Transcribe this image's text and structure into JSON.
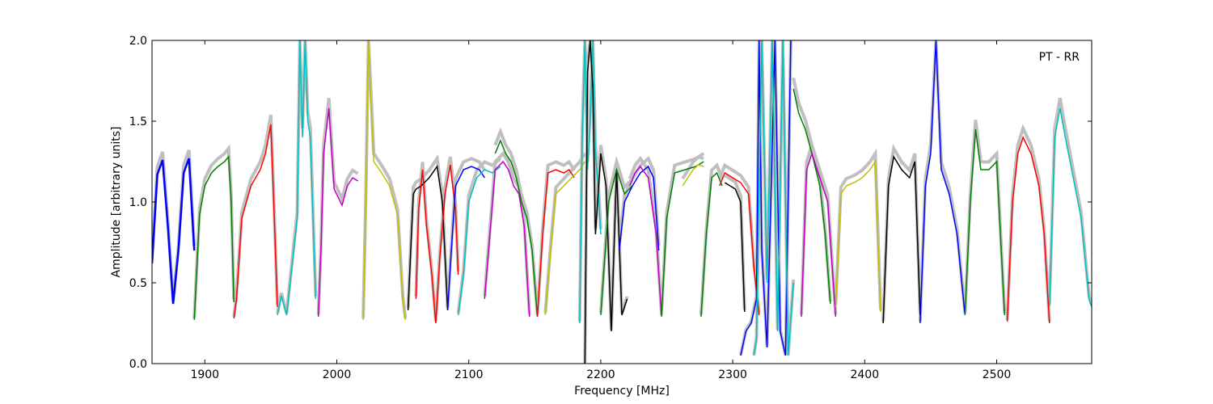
{
  "chart_data": {
    "type": "line",
    "title": "",
    "xlabel": "Frequency [MHz]",
    "ylabel": "Amplitude [arbitrary units]",
    "xlim": [
      1860,
      2572
    ],
    "ylim": [
      0,
      2.0
    ],
    "xticks": [
      1900,
      2000,
      2100,
      2200,
      2300,
      2400,
      2500
    ],
    "yticks": [
      0.0,
      0.5,
      1.0,
      1.5,
      2.0
    ],
    "annotation": "PT - RR",
    "grid": false,
    "reference_color": "#bfbfbf",
    "series": [
      {
        "color": "#0000ff",
        "x": [
          1860,
          1864,
          1868,
          1872,
          1876,
          1880,
          1884,
          1888,
          1892
        ],
        "y": [
          0.62,
          1.17,
          1.26,
          0.85,
          0.37,
          0.7,
          1.18,
          1.27,
          0.7
        ]
      },
      {
        "color": "#007f00",
        "x": [
          1892,
          1896,
          1900,
          1905,
          1910,
          1915,
          1918,
          1920,
          1922
        ],
        "y": [
          0.27,
          0.92,
          1.1,
          1.18,
          1.22,
          1.25,
          1.28,
          1.0,
          0.38
        ]
      },
      {
        "color": "#ff0000",
        "x": [
          1922,
          1924,
          1928,
          1935,
          1942,
          1946,
          1950,
          1952,
          1955
        ],
        "y": [
          0.28,
          0.4,
          0.9,
          1.1,
          1.2,
          1.3,
          1.48,
          1.05,
          0.35
        ]
      },
      {
        "color": "#00bfbf",
        "x": [
          1955,
          1958,
          1962,
          1966,
          1970,
          1972,
          1974,
          1976,
          1978,
          1980,
          1984
        ],
        "y": [
          0.3,
          0.42,
          0.3,
          0.6,
          0.9,
          2.0,
          1.4,
          2.0,
          1.5,
          1.4,
          0.4
        ]
      },
      {
        "color": "#bf00bf",
        "x": [
          1986,
          1988,
          1990,
          1994,
          1998,
          2004,
          2008,
          2012,
          2016
        ],
        "y": [
          0.29,
          0.7,
          1.3,
          1.58,
          1.08,
          0.98,
          1.1,
          1.15,
          1.13
        ]
      },
      {
        "color": "#bfbf00",
        "x": [
          2020,
          2022,
          2024,
          2026,
          2028,
          2034,
          2040,
          2046,
          2050,
          2052
        ],
        "y": [
          0.27,
          1.0,
          2.0,
          1.6,
          1.25,
          1.18,
          1.1,
          0.92,
          0.4,
          0.27
        ]
      },
      {
        "color": "#000000",
        "x": [
          2054,
          2056,
          2058,
          2060,
          2064,
          2070,
          2076,
          2080,
          2084
        ],
        "y": [
          0.33,
          0.7,
          1.05,
          1.08,
          1.1,
          1.15,
          1.22,
          1.0,
          0.33
        ]
      },
      {
        "color": "#ff0000",
        "x": [
          2060,
          2062,
          2065,
          2068,
          2072,
          2075,
          2078,
          2082,
          2086,
          2090,
          2092
        ],
        "y": [
          0.4,
          0.95,
          1.2,
          0.85,
          0.55,
          0.25,
          0.65,
          1.05,
          1.23,
          0.95,
          0.55
        ]
      },
      {
        "color": "#0000ff",
        "x": [
          2084,
          2086,
          2090,
          2096,
          2102,
          2108,
          2112
        ],
        "y": [
          0.33,
          0.6,
          1.1,
          1.2,
          1.22,
          1.2,
          1.15
        ]
      },
      {
        "color": "#00bfbf",
        "x": [
          2092,
          2096,
          2100,
          2106,
          2112,
          2118,
          2124
        ],
        "y": [
          0.3,
          0.55,
          1.0,
          1.15,
          1.2,
          1.18,
          1.22
        ]
      },
      {
        "color": "#bf00bf",
        "x": [
          2112,
          2116,
          2120,
          2126,
          2130,
          2134,
          2138,
          2142,
          2146
        ],
        "y": [
          0.4,
          0.8,
          1.2,
          1.25,
          1.2,
          1.1,
          1.05,
          0.85,
          0.29
        ]
      },
      {
        "color": "#007f00",
        "x": [
          2120,
          2124,
          2128,
          2132,
          2136,
          2140,
          2144,
          2148,
          2152
        ],
        "y": [
          1.3,
          1.38,
          1.3,
          1.25,
          1.15,
          1.0,
          0.9,
          0.7,
          0.29
        ]
      },
      {
        "color": "#ff0000",
        "x": [
          2152,
          2156,
          2160,
          2166,
          2172,
          2176,
          2180
        ],
        "y": [
          0.29,
          0.8,
          1.18,
          1.2,
          1.18,
          1.2,
          1.15
        ]
      },
      {
        "color": "#bfbf00",
        "x": [
          2158,
          2162,
          2166,
          2172,
          2178,
          2184,
          2188
        ],
        "y": [
          0.3,
          0.7,
          1.05,
          1.1,
          1.15,
          1.2,
          1.25
        ]
      },
      {
        "color": "#00bfbf",
        "x": [
          2184,
          2186,
          2188,
          2190,
          2192,
          2194,
          2196,
          2198,
          2200
        ],
        "y": [
          0.25,
          1.4,
          2.0,
          1.2,
          1.5,
          2.0,
          1.3,
          1.1,
          0.8
        ]
      },
      {
        "color": "#000000",
        "x": [
          2188,
          2190,
          2192,
          2194,
          2196,
          2200,
          2204,
          2208,
          2212,
          2216,
          2220
        ],
        "y": [
          0.0,
          1.8,
          2.0,
          1.7,
          0.8,
          1.3,
          1.1,
          0.2,
          1.2,
          0.3,
          0.4
        ]
      },
      {
        "color": "#007f00",
        "x": [
          2200,
          2206,
          2212,
          2218,
          2224
        ],
        "y": [
          0.3,
          1.0,
          1.2,
          1.05,
          1.1
        ]
      },
      {
        "color": "#0000ff",
        "x": [
          2214,
          2218,
          2224,
          2230,
          2236,
          2240,
          2244
        ],
        "y": [
          0.7,
          1.0,
          1.1,
          1.18,
          1.22,
          1.15,
          0.7
        ]
      },
      {
        "color": "#bf00bf",
        "x": [
          2222,
          2226,
          2230,
          2236,
          2242,
          2246
        ],
        "y": [
          1.1,
          1.18,
          1.22,
          1.15,
          0.8,
          0.3
        ]
      },
      {
        "color": "#007f00",
        "x": [
          2246,
          2250,
          2256,
          2264,
          2272,
          2278
        ],
        "y": [
          0.29,
          0.9,
          1.18,
          1.2,
          1.22,
          1.25
        ]
      },
      {
        "color": "#bfbf00",
        "x": [
          2262,
          2266,
          2270,
          2274,
          2278
        ],
        "y": [
          1.1,
          1.15,
          1.2,
          1.23,
          1.22
        ]
      },
      {
        "color": "#007f00",
        "x": [
          2276,
          2280,
          2284,
          2288,
          2292
        ],
        "y": [
          0.29,
          0.8,
          1.15,
          1.18,
          1.1
        ]
      },
      {
        "color": "#ff0000",
        "x": [
          2290,
          2294,
          2300,
          2306,
          2312,
          2316,
          2320
        ],
        "y": [
          1.1,
          1.18,
          1.15,
          1.12,
          1.05,
          0.6,
          0.3
        ]
      },
      {
        "color": "#000000",
        "x": [
          2294,
          2298,
          2302,
          2306,
          2309
        ],
        "y": [
          1.12,
          1.1,
          1.08,
          1.0,
          0.32
        ]
      },
      {
        "color": "#0000ff",
        "x": [
          2306,
          2310,
          2314,
          2318,
          2320,
          2322,
          2326,
          2332,
          2336,
          2340,
          2344
        ],
        "y": [
          0.05,
          0.2,
          0.25,
          0.4,
          2.0,
          0.7,
          0.1,
          2.0,
          0.2,
          0.05,
          2.0
        ]
      },
      {
        "color": "#00bfbf",
        "x": [
          2316,
          2318,
          2322,
          2326,
          2330,
          2334,
          2338,
          2342,
          2346
        ],
        "y": [
          0.05,
          0.15,
          2.0,
          0.5,
          2.0,
          0.2,
          2.0,
          0.05,
          0.5
        ]
      },
      {
        "color": "#007f00",
        "x": [
          2346,
          2350,
          2355,
          2360,
          2366,
          2370,
          2374
        ],
        "y": [
          1.7,
          1.55,
          1.45,
          1.3,
          1.1,
          0.8,
          0.37
        ]
      },
      {
        "color": "#bf00bf",
        "x": [
          2352,
          2356,
          2360,
          2366,
          2372,
          2378
        ],
        "y": [
          0.29,
          1.2,
          1.3,
          1.15,
          1.0,
          0.29
        ]
      },
      {
        "color": "#bfbf00",
        "x": [
          2378,
          2382,
          2386,
          2392,
          2398,
          2404,
          2408,
          2412
        ],
        "y": [
          0.35,
          1.05,
          1.1,
          1.12,
          1.15,
          1.2,
          1.25,
          0.32
        ]
      },
      {
        "color": "#000000",
        "x": [
          2414,
          2418,
          2422,
          2428,
          2434,
          2438,
          2442
        ],
        "y": [
          0.25,
          1.1,
          1.28,
          1.2,
          1.15,
          1.25,
          0.3
        ]
      },
      {
        "color": "#0000ff",
        "x": [
          2442,
          2446,
          2450,
          2454,
          2458,
          2464,
          2470,
          2476
        ],
        "y": [
          0.25,
          1.1,
          1.3,
          2.0,
          1.2,
          1.05,
          0.8,
          0.3
        ]
      },
      {
        "color": "#007f00",
        "x": [
          2476,
          2480,
          2484,
          2488,
          2494,
          2500,
          2506
        ],
        "y": [
          0.3,
          1.0,
          1.45,
          1.2,
          1.2,
          1.25,
          0.3
        ]
      },
      {
        "color": "#ff0000",
        "x": [
          2508,
          2512,
          2516,
          2520,
          2526,
          2532,
          2536,
          2540
        ],
        "y": [
          0.26,
          1.0,
          1.3,
          1.4,
          1.3,
          1.1,
          0.8,
          0.25
        ]
      },
      {
        "color": "#00bfbf",
        "x": [
          2540,
          2544,
          2548,
          2552,
          2558,
          2564,
          2570,
          2572
        ],
        "y": [
          0.35,
          1.4,
          1.58,
          1.4,
          1.15,
          0.9,
          0.4,
          0.35
        ]
      }
    ]
  }
}
